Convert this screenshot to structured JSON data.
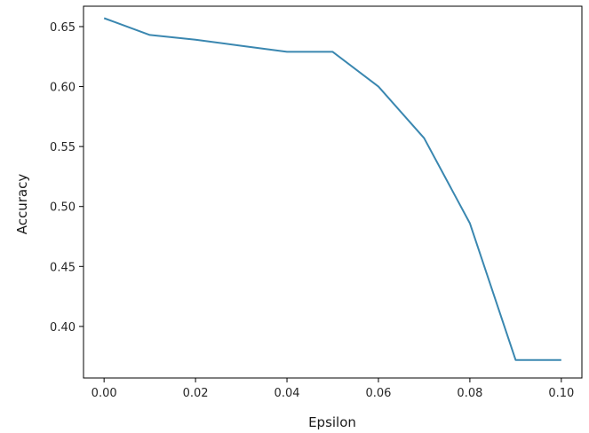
{
  "chart_data": {
    "type": "line",
    "title": "",
    "xlabel": "Epsilon",
    "ylabel": "Accuracy",
    "xlim": [
      -0.0045,
      0.1045
    ],
    "ylim": [
      0.357,
      0.667
    ],
    "xticks": [
      0.0,
      0.02,
      0.04,
      0.06,
      0.08,
      0.1
    ],
    "xtick_labels": [
      "0.00",
      "0.02",
      "0.04",
      "0.06",
      "0.08",
      "0.10"
    ],
    "yticks": [
      0.4,
      0.45,
      0.5,
      0.55,
      0.6,
      0.65
    ],
    "ytick_labels": [
      "0.40",
      "0.45",
      "0.50",
      "0.55",
      "0.60",
      "0.65"
    ],
    "grid": false,
    "legend": "none",
    "series": [
      {
        "color": "#3a87b0",
        "x": [
          0.0,
          0.01,
          0.02,
          0.03,
          0.04,
          0.05,
          0.06,
          0.07,
          0.08,
          0.09,
          0.1
        ],
        "y": [
          0.657,
          0.643,
          0.639,
          0.634,
          0.629,
          0.629,
          0.6,
          0.557,
          0.486,
          0.372,
          0.372
        ]
      }
    ]
  }
}
